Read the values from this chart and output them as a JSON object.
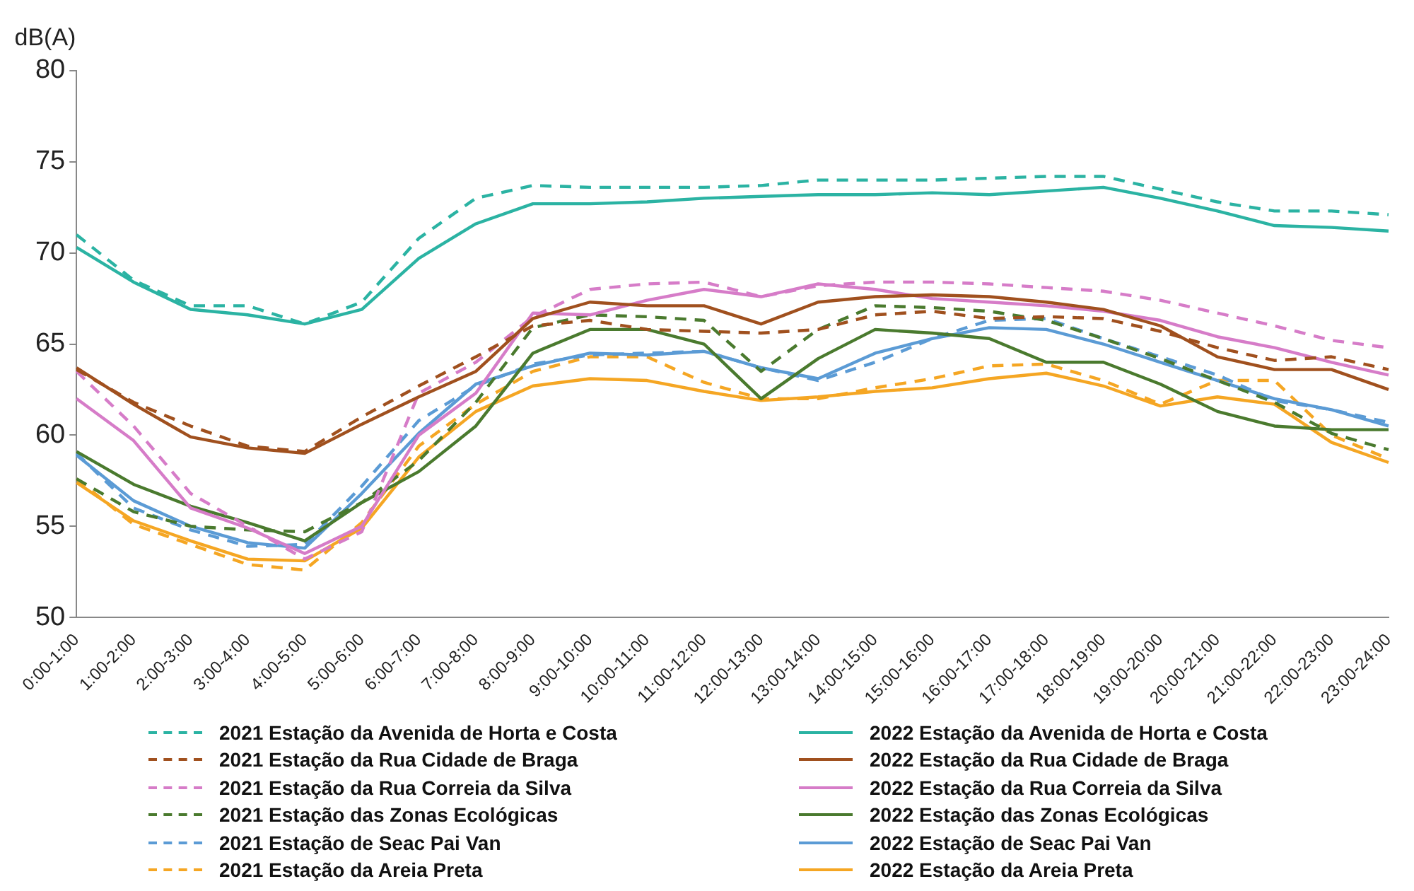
{
  "chart_data": {
    "type": "line",
    "ylabel": "dB(A)",
    "categories": [
      "0:00-1:00",
      "1:00-2:00",
      "2:00-3:00",
      "3:00-4:00",
      "4:00-5:00",
      "5:00-6:00",
      "6:00-7:00",
      "7:00-8:00",
      "8:00-9:00",
      "9:00-10:00",
      "10:00-11:00",
      "11:00-12:00",
      "12:00-13:00",
      "13:00-14:00",
      "14:00-15:00",
      "15:00-16:00",
      "16:00-17:00",
      "17:00-18:00",
      "18:00-19:00",
      "19:00-20:00",
      "20:00-21:00",
      "21:00-22:00",
      "22:00-23:00",
      "23:00-24:00"
    ],
    "ylim": [
      50,
      80
    ],
    "yticks": [
      50,
      55,
      60,
      65,
      70,
      75,
      80
    ],
    "grid": false,
    "legend": "bottom",
    "marker": "none",
    "series": [
      {
        "name": "2021 Estação da Avenida de Horta e Costa",
        "color": "#2bb3a3",
        "line_style": "dashed",
        "values": [
          71,
          68.5,
          67.1,
          67.1,
          66.1,
          67.3,
          70.8,
          73.0,
          73.7,
          73.6,
          73.6,
          73.6,
          73.7,
          74.0,
          74.0,
          74.0,
          74.1,
          74.2,
          74.2,
          73.5,
          72.8,
          72.3,
          72.3,
          72.1
        ]
      },
      {
        "name": "2022 Estação da Avenida de Horta e Costa",
        "color": "#2bb3a3",
        "line_style": "solid",
        "values": [
          70.3,
          68.4,
          66.9,
          66.6,
          66.1,
          66.9,
          69.7,
          71.6,
          72.7,
          72.7,
          72.8,
          73.0,
          73.1,
          73.2,
          73.2,
          73.3,
          73.2,
          73.4,
          73.6,
          73.0,
          72.3,
          71.5,
          71.4,
          71.2
        ]
      },
      {
        "name": "2021 Estação da Rua Cidade de Braga",
        "color": "#a0501e",
        "line_style": "dashed",
        "values": [
          63.6,
          61.8,
          60.5,
          59.4,
          59.1,
          61.0,
          62.7,
          64.3,
          66.0,
          66.3,
          65.8,
          65.7,
          65.6,
          65.8,
          66.6,
          66.8,
          66.4,
          66.5,
          66.4,
          65.7,
          64.8,
          64.1,
          64.3,
          63.6
        ]
      },
      {
        "name": "2022 Estação da Rua Cidade de Braga",
        "color": "#a0501e",
        "line_style": "solid",
        "values": [
          63.7,
          61.7,
          59.9,
          59.3,
          59.0,
          60.6,
          62.1,
          63.5,
          66.4,
          67.3,
          67.1,
          67.1,
          66.1,
          67.3,
          67.6,
          67.7,
          67.6,
          67.3,
          66.9,
          66.0,
          64.3,
          63.6,
          63.6,
          62.5
        ]
      },
      {
        "name": "2021 Estação da Rua Correia da Silva",
        "color": "#d67cc8",
        "line_style": "dashed",
        "values": [
          63.5,
          60.5,
          56.8,
          55.0,
          53.2,
          54.7,
          62.3,
          64.0,
          66.5,
          68.0,
          68.3,
          68.4,
          67.6,
          68.2,
          68.4,
          68.4,
          68.3,
          68.1,
          67.9,
          67.4,
          66.7,
          66.0,
          65.2,
          64.8
        ]
      },
      {
        "name": "2022 Estação da Rua Correia da Silva",
        "color": "#d67cc8",
        "line_style": "solid",
        "values": [
          62.0,
          59.7,
          56.0,
          54.9,
          53.5,
          55.0,
          60.0,
          62.3,
          66.7,
          66.6,
          67.4,
          68.0,
          67.6,
          68.3,
          68.0,
          67.5,
          67.3,
          67.1,
          66.8,
          66.3,
          65.4,
          64.8,
          64.0,
          63.3
        ]
      },
      {
        "name": "2021 Estação das Zonas Ecológicas",
        "color": "#4a7a2e",
        "line_style": "dashed",
        "values": [
          57.6,
          55.8,
          55.0,
          54.8,
          54.7,
          56.3,
          58.6,
          61.8,
          65.9,
          66.6,
          66.5,
          66.3,
          63.5,
          65.8,
          67.1,
          67.0,
          66.8,
          66.3,
          65.3,
          64.2,
          63.0,
          61.8,
          60.1,
          59.2
        ]
      },
      {
        "name": "2022 Estação das Zonas Ecológicas",
        "color": "#4a7a2e",
        "line_style": "solid",
        "values": [
          59.1,
          57.3,
          56.1,
          55.2,
          54.2,
          56.3,
          58.0,
          60.5,
          64.5,
          65.8,
          65.8,
          65.0,
          62.0,
          64.2,
          65.8,
          65.6,
          65.3,
          64.0,
          64.0,
          62.8,
          61.3,
          60.5,
          60.3,
          60.3
        ]
      },
      {
        "name": "2021 Estação de Seac Pai Van",
        "color": "#5b9bd5",
        "line_style": "dashed",
        "values": [
          59.0,
          56.0,
          54.8,
          53.9,
          54.0,
          57.2,
          60.8,
          62.7,
          63.9,
          64.4,
          64.5,
          64.6,
          63.7,
          63.0,
          64.0,
          65.3,
          66.3,
          66.4,
          65.3,
          64.3,
          63.3,
          61.9,
          61.4,
          60.7
        ]
      },
      {
        "name": "2022 Estação de Seac Pai Van",
        "color": "#5b9bd5",
        "line_style": "solid",
        "values": [
          58.9,
          56.4,
          55.0,
          54.1,
          53.8,
          56.8,
          60.1,
          62.8,
          63.8,
          64.5,
          64.4,
          64.6,
          63.7,
          63.1,
          64.5,
          65.3,
          65.9,
          65.8,
          65.0,
          64.0,
          63.0,
          62.0,
          61.4,
          60.5
        ]
      },
      {
        "name": "2021 Estação da Areia Preta",
        "color": "#f5a623",
        "line_style": "dashed",
        "values": [
          57.6,
          55.1,
          54.0,
          52.9,
          52.6,
          55.2,
          59.4,
          61.7,
          63.5,
          64.3,
          64.3,
          62.9,
          62.0,
          62.0,
          62.6,
          63.1,
          63.8,
          63.9,
          63.0,
          61.7,
          63.0,
          63.0,
          60.0,
          58.7
        ]
      },
      {
        "name": "2022 Estação da Areia Preta",
        "color": "#f5a623",
        "line_style": "solid",
        "values": [
          57.4,
          55.3,
          54.2,
          53.2,
          53.1,
          54.9,
          58.8,
          61.3,
          62.7,
          63.1,
          63.0,
          62.4,
          61.9,
          62.1,
          62.4,
          62.6,
          63.1,
          63.4,
          62.7,
          61.6,
          62.1,
          61.7,
          59.6,
          58.5
        ]
      }
    ]
  }
}
